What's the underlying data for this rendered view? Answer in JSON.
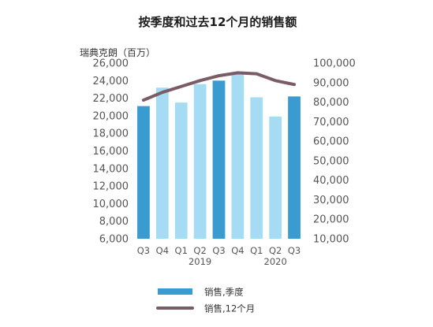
{
  "chart_data": {
    "type": "bar",
    "title": "按季度和过去12个月的销售额",
    "unit_label": "瑞典克朗（百万）",
    "categories": [
      "Q3",
      "Q4",
      "Q1",
      "Q2",
      "Q3",
      "Q4",
      "Q1",
      "Q2",
      "Q3"
    ],
    "years": [
      {
        "label": "2019",
        "center_index": 3
      },
      {
        "label": "2020",
        "center_index": 7
      }
    ],
    "series": [
      {
        "name": "销售,季度",
        "type": "bar",
        "axis": "left",
        "values": [
          21100,
          23200,
          21500,
          23600,
          24000,
          24900,
          22100,
          19900,
          22200
        ],
        "colors": [
          "#3a9bd1",
          "#a6dcf3",
          "#a6dcf3",
          "#a6dcf3",
          "#3a9bd1",
          "#a6dcf3",
          "#a6dcf3",
          "#a6dcf3",
          "#3a9bd1"
        ]
      },
      {
        "name": "销售,12个月",
        "type": "line",
        "axis": "right",
        "values": [
          81000,
          85000,
          88000,
          91000,
          93500,
          95000,
          94500,
          91000,
          89000
        ],
        "color": "#7a5c66"
      }
    ],
    "y_left": {
      "min": 6000,
      "max": 26000,
      "ticks": [
        6000,
        8000,
        10000,
        12000,
        14000,
        16000,
        18000,
        20000,
        22000,
        24000,
        26000
      ],
      "tick_labels": [
        "6,000",
        "8,000",
        "10,000",
        "12,000",
        "14,000",
        "16,000",
        "18,000",
        "20,000",
        "22,000",
        "24,000",
        "26,000"
      ]
    },
    "y_right": {
      "min": 10000,
      "max": 100000,
      "ticks": [
        10000,
        20000,
        30000,
        40000,
        50000,
        60000,
        70000,
        80000,
        90000,
        100000
      ],
      "tick_labels": [
        "10,000",
        "20,000",
        "30,000",
        "40,000",
        "50,000",
        "60,000",
        "70,000",
        "80,000",
        "90,000",
        "100,000"
      ]
    },
    "grid": false,
    "legend_position": "bottom",
    "legend": [
      {
        "label": "销售,季度",
        "kind": "bar",
        "color": "#3a9bd1"
      },
      {
        "label": "销售,12个月",
        "kind": "line",
        "color": "#7a5c66"
      }
    ]
  }
}
